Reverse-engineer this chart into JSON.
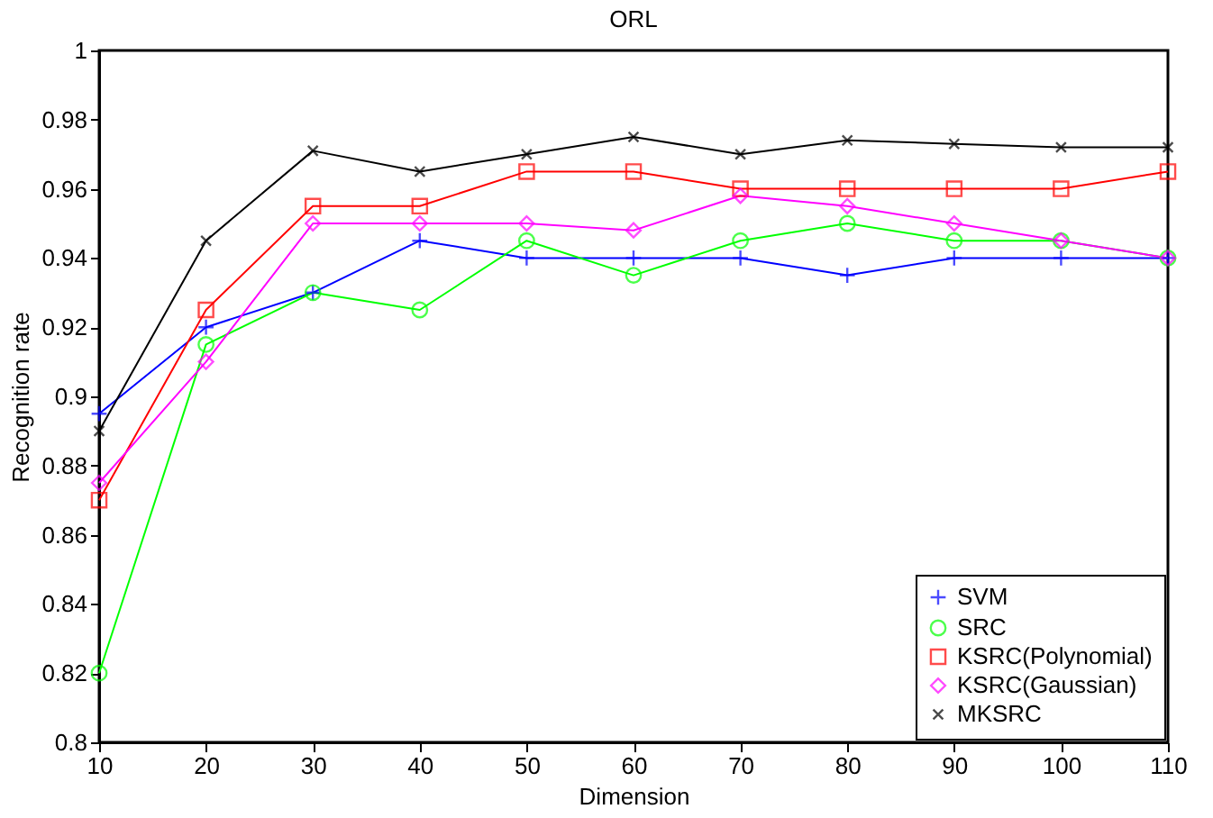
{
  "chart_data": {
    "type": "line",
    "title": "ORL",
    "xlabel": "Dimension",
    "ylabel": "Recognition rate",
    "x": [
      10,
      20,
      30,
      40,
      50,
      60,
      70,
      80,
      90,
      100,
      110
    ],
    "series": [
      {
        "name": "SVM",
        "color": "#0000ff",
        "marker": "plus",
        "values": [
          0.895,
          0.92,
          0.93,
          0.945,
          0.94,
          0.94,
          0.94,
          0.935,
          0.94,
          0.94,
          0.94
        ]
      },
      {
        "name": "SRC",
        "color": "#00ff00",
        "marker": "circle",
        "values": [
          0.82,
          0.915,
          0.93,
          0.925,
          0.945,
          0.935,
          0.945,
          0.95,
          0.945,
          0.945,
          0.94
        ]
      },
      {
        "name": "KSRC(Polynomial)",
        "color": "#ff0000",
        "marker": "square",
        "values": [
          0.87,
          0.925,
          0.955,
          0.955,
          0.965,
          0.965,
          0.96,
          0.96,
          0.96,
          0.96,
          0.965
        ]
      },
      {
        "name": "KSRC(Gaussian)",
        "color": "#ff00ff",
        "marker": "diamond",
        "values": [
          0.875,
          0.91,
          0.95,
          0.95,
          0.95,
          0.948,
          0.958,
          0.955,
          0.95,
          0.945,
          0.94
        ]
      },
      {
        "name": "MKSRC",
        "color": "#000000",
        "marker": "cross",
        "values": [
          0.89,
          0.945,
          0.971,
          0.965,
          0.97,
          0.975,
          0.97,
          0.974,
          0.973,
          0.972,
          0.972
        ]
      }
    ],
    "xlim": [
      10,
      110
    ],
    "xticks": [
      10,
      20,
      30,
      40,
      50,
      60,
      70,
      80,
      90,
      100,
      110
    ],
    "ylim": [
      0.8,
      1
    ],
    "yticks": [
      0.8,
      0.82,
      0.84,
      0.86,
      0.88,
      0.9,
      0.92,
      0.94,
      0.96,
      0.98,
      1
    ],
    "grid": false,
    "legend": "bottom right",
    "line_style": "solid"
  }
}
